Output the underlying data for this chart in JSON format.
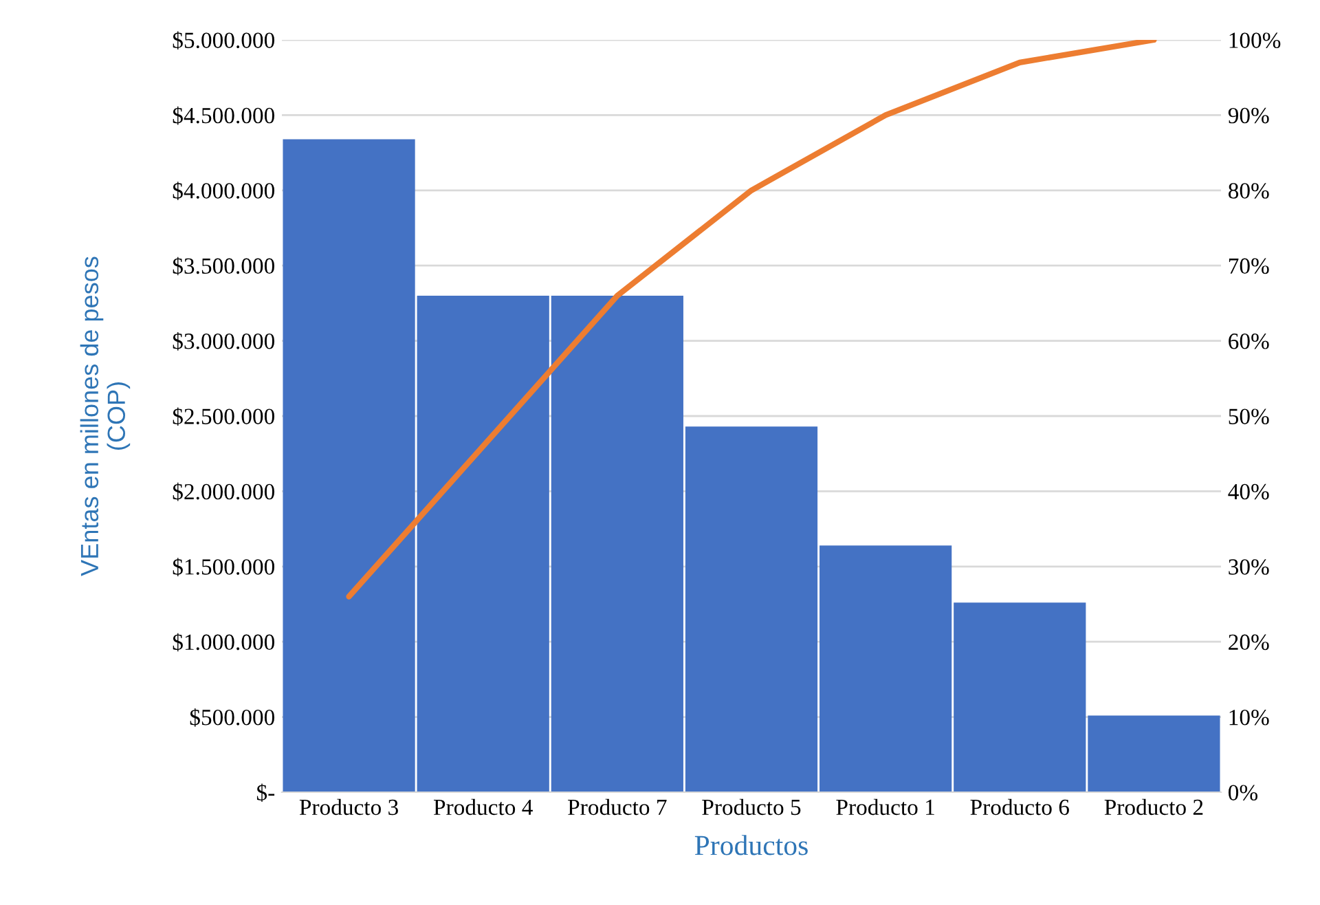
{
  "chart_data": {
    "type": "bar",
    "xlabel": "Productos",
    "ylabel": "VEntas en millones de pesos\n(COP)",
    "categories": [
      "Producto 3",
      "Producto 4",
      "Producto 7",
      "Producto 5",
      "Producto 1",
      "Producto 6",
      "Producto 2"
    ],
    "series": [
      {
        "color": "#4472c4",
        "values": [
          4340000,
          3300000,
          3300000,
          2430000,
          1640000,
          1260000,
          510000
        ]
      },
      {
        "type": "line",
        "axis": "y2",
        "color": "#ed7d31",
        "marker": "none",
        "values": [
          26,
          46,
          66,
          80,
          90,
          97,
          100
        ]
      }
    ],
    "ylim": [
      0,
      5000000
    ],
    "yticks": [
      {
        "value": 0,
        "label": "$-"
      },
      {
        "value": 500000,
        "label": "$500.000"
      },
      {
        "value": 1000000,
        "label": "$1.000.000"
      },
      {
        "value": 1500000,
        "label": "$1.500.000"
      },
      {
        "value": 2000000,
        "label": "$2.000.000"
      },
      {
        "value": 2500000,
        "label": "$2.500.000"
      },
      {
        "value": 3000000,
        "label": "$3.000.000"
      },
      {
        "value": 3500000,
        "label": "$3.500.000"
      },
      {
        "value": 4000000,
        "label": "$4.000.000"
      },
      {
        "value": 4500000,
        "label": "$4.500.000"
      },
      {
        "value": 5000000,
        "label": "$5.000.000"
      }
    ],
    "y2lim": [
      0,
      100
    ],
    "y2ticks": [
      {
        "value": 0,
        "label": "0%"
      },
      {
        "value": 10,
        "label": "10%"
      },
      {
        "value": 20,
        "label": "20%"
      },
      {
        "value": 30,
        "label": "30%"
      },
      {
        "value": 40,
        "label": "40%"
      },
      {
        "value": 50,
        "label": "50%"
      },
      {
        "value": 60,
        "label": "60%"
      },
      {
        "value": 70,
        "label": "70%"
      },
      {
        "value": 80,
        "label": "80%"
      },
      {
        "value": 90,
        "label": "90%"
      },
      {
        "value": 100,
        "label": "100%"
      }
    ],
    "grid": "y"
  }
}
